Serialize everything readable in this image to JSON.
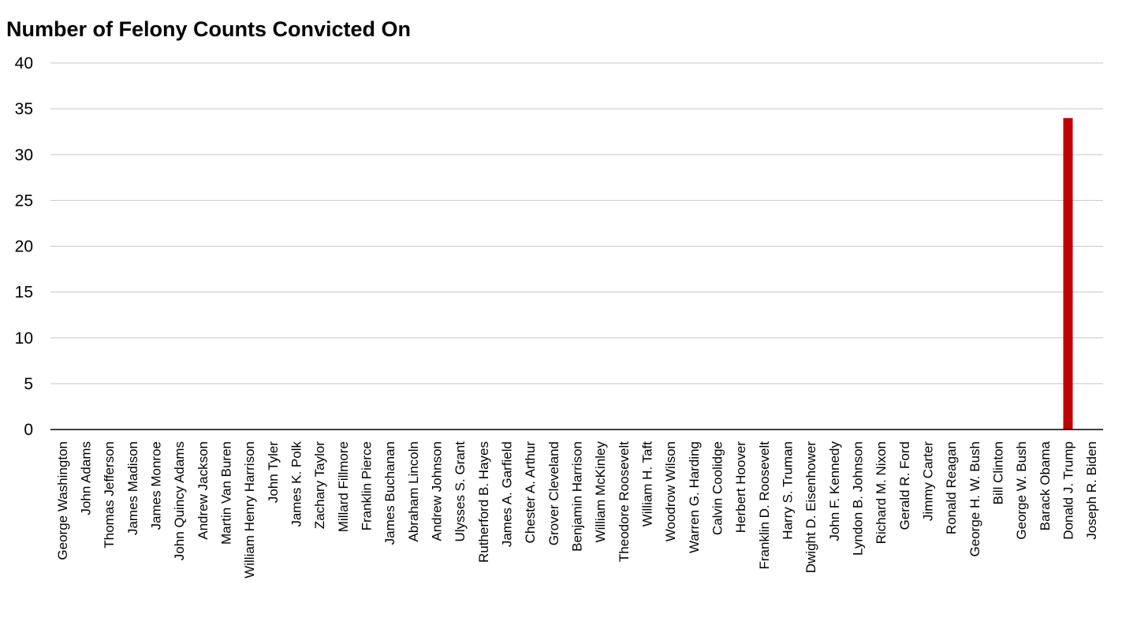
{
  "chart_data": {
    "type": "bar",
    "title": "Number of Felony Counts Convicted On",
    "xlabel": "",
    "ylabel": "",
    "ylim": [
      0,
      40
    ],
    "yticks": [
      0,
      5,
      10,
      15,
      20,
      25,
      30,
      35,
      40
    ],
    "grid": true,
    "legend": "none",
    "bar_color": "#C00000",
    "categories": [
      "George Washington",
      "John Adams",
      "Thomas Jefferson",
      "James Madison",
      "James Monroe",
      "John Quincy Adams",
      "Andrew Jackson",
      "Martin Van Buren",
      "William Henry Harrison",
      "John Tyler",
      "James K. Polk",
      "Zachary Taylor",
      "Millard Fillmore",
      "Franklin Pierce",
      "James Buchanan",
      "Abraham Lincoln",
      "Andrew Johnson",
      "Ulysses S. Grant",
      "Rutherford B. Hayes",
      "James A. Garfield",
      "Chester A. Arthur",
      "Grover Cleveland",
      "Benjamin Harrison",
      "William McKinley",
      "Theodore Roosevelt",
      "William H. Taft",
      "Woodrow Wilson",
      "Warren G. Harding",
      "Calvin Coolidge",
      "Herbert Hoover",
      "Franklin D. Roosevelt",
      "Harry S. Truman",
      "Dwight D. Eisenhower",
      "John F. Kennedy",
      "Lyndon B. Johnson",
      "Richard M. Nixon",
      "Gerald R. Ford",
      "Jimmy Carter",
      "Ronald Reagan",
      "George H. W. Bush",
      "Bill Clinton",
      "George W. Bush",
      "Barack Obama",
      "Donald J. Trump",
      "Joseph R. Biden"
    ],
    "values": [
      0,
      0,
      0,
      0,
      0,
      0,
      0,
      0,
      0,
      0,
      0,
      0,
      0,
      0,
      0,
      0,
      0,
      0,
      0,
      0,
      0,
      0,
      0,
      0,
      0,
      0,
      0,
      0,
      0,
      0,
      0,
      0,
      0,
      0,
      0,
      0,
      0,
      0,
      0,
      0,
      0,
      0,
      0,
      34,
      0
    ]
  }
}
